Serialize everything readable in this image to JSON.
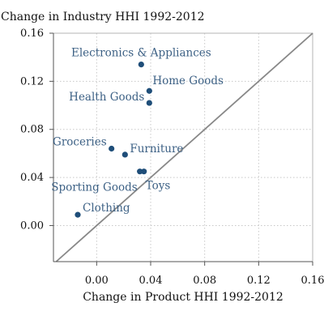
{
  "chart_data": {
    "type": "scatter",
    "title": "Change in Industry HHI 1992-2012",
    "xlabel": "Change in Product HHI 1992-2012",
    "ylabel": "",
    "xlim": [
      -0.032,
      0.16
    ],
    "ylim": [
      -0.03,
      0.16
    ],
    "xticks": [
      "0.00",
      "0.04",
      "0.08",
      "0.12",
      "0.16"
    ],
    "yticks": [
      "0.00",
      "0.04",
      "0.08",
      "0.12",
      "0.16"
    ],
    "grid": true,
    "reference_line": "45-degree",
    "colors": {
      "points": "#1f4e79",
      "labels": "#3d6185",
      "reference_line": "#888888",
      "grid": "#c8c8c8"
    },
    "points": [
      {
        "label": "Electronics & Appliances",
        "x": 0.033,
        "y": 0.134
      },
      {
        "label": "Home Goods",
        "x": 0.039,
        "y": 0.112
      },
      {
        "label": "Health Goods",
        "x": 0.039,
        "y": 0.102
      },
      {
        "label": "Groceries",
        "x": 0.011,
        "y": 0.064
      },
      {
        "label": "Furniture",
        "x": 0.021,
        "y": 0.059
      },
      {
        "label": "Sporting Goods",
        "x": 0.032,
        "y": 0.045
      },
      {
        "label": "Toys",
        "x": 0.035,
        "y": 0.045
      },
      {
        "label": "Clothing",
        "x": -0.014,
        "y": 0.009
      }
    ]
  }
}
